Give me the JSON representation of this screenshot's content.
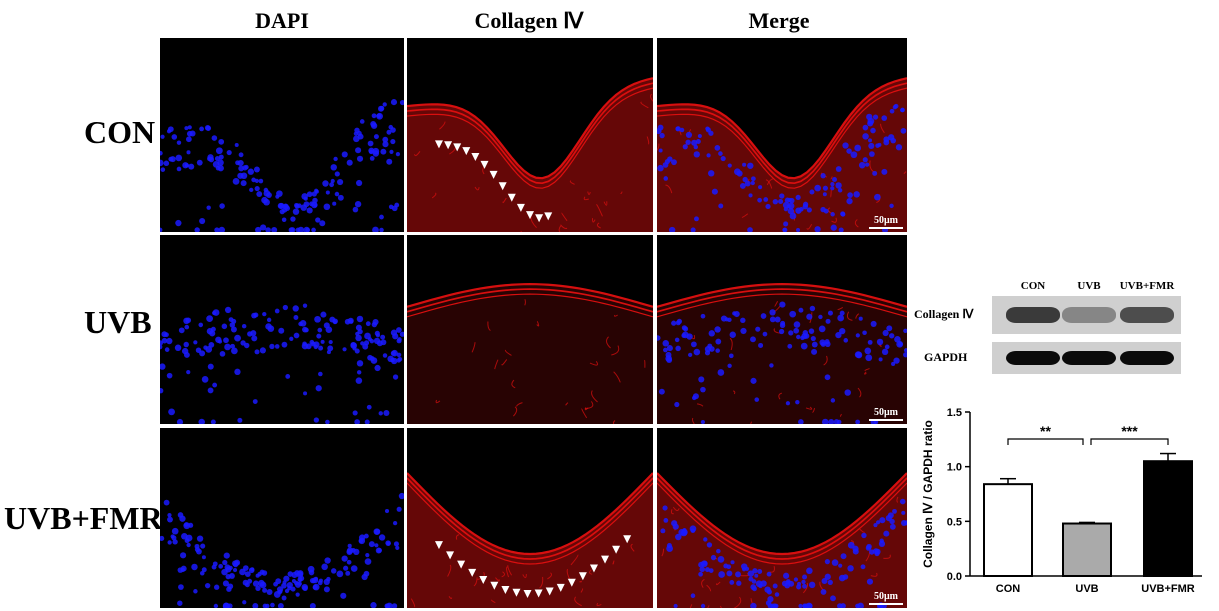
{
  "figure": {
    "column_headers": [
      "DAPI",
      "Collagen Ⅳ",
      "Merge"
    ],
    "row_labels": [
      "CON",
      "UVB",
      "UVB+FMR"
    ],
    "scale_bar_label": "50μm",
    "colors": {
      "dapi": "#1a1aff",
      "collagen": "#e01010",
      "background": "#000000"
    }
  },
  "western_blot": {
    "lane_labels": [
      "CON",
      "UVB",
      "UVB+FMR"
    ],
    "rows": [
      {
        "label": "Collagen Ⅳ",
        "band_intensity": [
          0.75,
          0.35,
          0.65
        ]
      },
      {
        "label": "GAPDH",
        "band_intensity": [
          1.0,
          1.0,
          1.0
        ]
      }
    ]
  },
  "chart_data": {
    "type": "bar",
    "categories": [
      "CON",
      "UVB",
      "UVB+FMR"
    ],
    "values": [
      0.84,
      0.48,
      1.05
    ],
    "errors": [
      0.05,
      0.01,
      0.07
    ],
    "bar_colors": [
      "#ffffff",
      "#aaaaaa",
      "#000000"
    ],
    "ylabel": "Collagen Ⅳ / GAPDH ratio",
    "ylim": [
      0,
      1.5
    ],
    "yticks": [
      "0.0",
      "0.5",
      "1.0",
      "1.5"
    ],
    "significance": [
      {
        "from": 0,
        "to": 1,
        "label": "**"
      },
      {
        "from": 1,
        "to": 2,
        "label": "***"
      }
    ]
  }
}
